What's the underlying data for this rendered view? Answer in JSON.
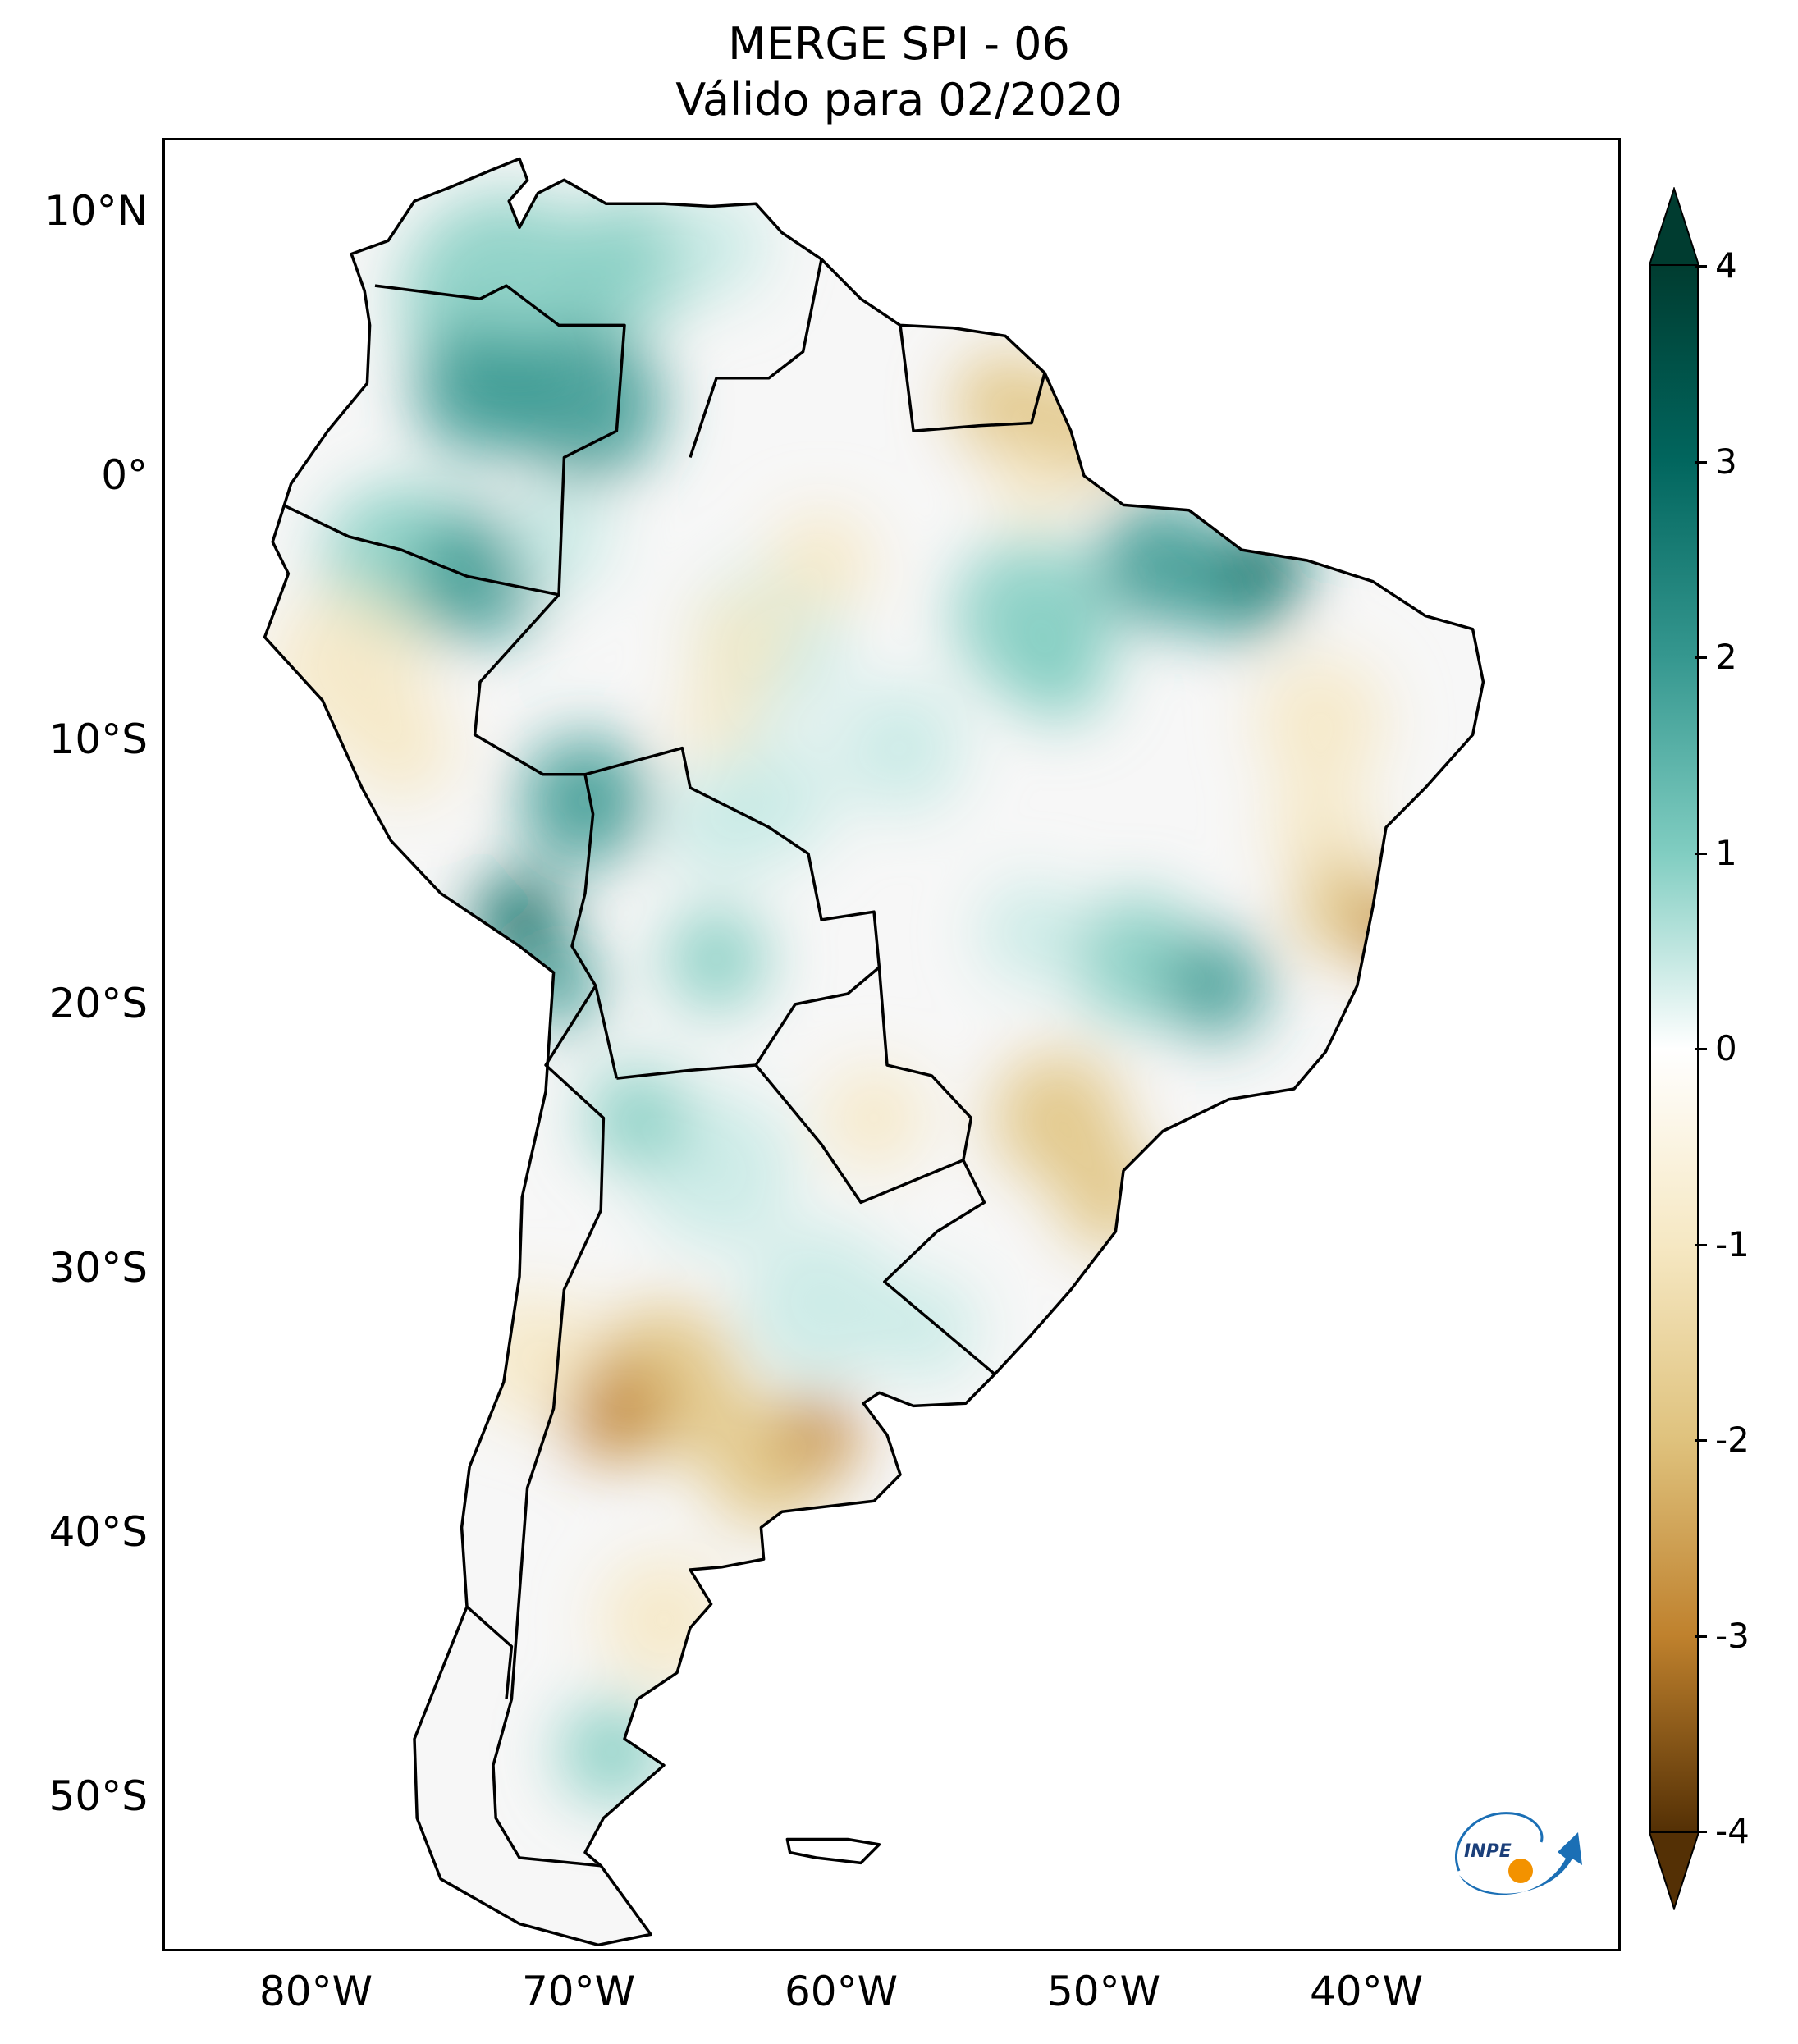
{
  "title": {
    "line1": "MERGE   SPI - 06",
    "line2": "Válido para 02/2020"
  },
  "map": {
    "region": "South America",
    "lat_ticks": [
      "10°N",
      "0°",
      "10°S",
      "20°S",
      "30°S",
      "40°S",
      "50°S"
    ],
    "lon_ticks": [
      "80°W",
      "70°W",
      "60°W",
      "50°W",
      "40°W"
    ],
    "colors": {
      "wet_extreme": "#003c30",
      "wet_strong": "#01665e",
      "wet_mid": "#35978f",
      "wet_light": "#80cdc1",
      "wet_faint": "#c7eae5",
      "neutral": "#ffffff",
      "dry_faint": "#f6e8c3",
      "dry_light": "#dfc27d",
      "dry_mid": "#bf812d",
      "dry_strong": "#8c510a",
      "dry_extreme": "#543005"
    }
  },
  "colorbar": {
    "ticks": [
      "4",
      "3",
      "2",
      "1",
      "0",
      "-1",
      "-2",
      "-3",
      "-4"
    ],
    "range": [
      -4,
      4
    ],
    "extend": "both"
  },
  "logo": {
    "text": "INPE",
    "colors": {
      "arrow": "#1b6fb5",
      "dot": "#f39200"
    }
  }
}
